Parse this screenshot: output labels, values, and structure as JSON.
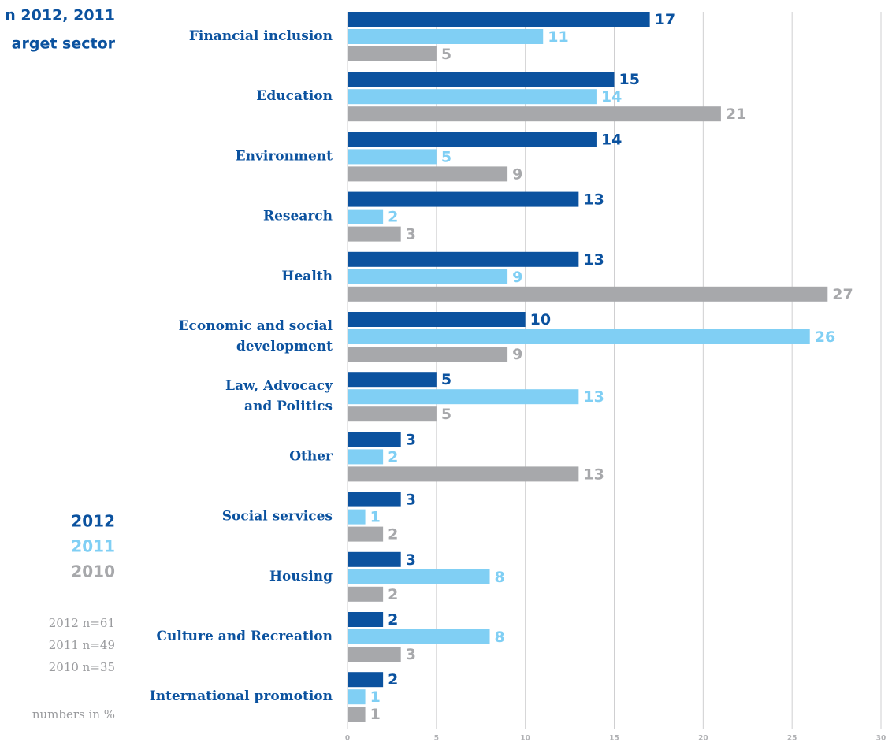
{
  "chart_data": {
    "type": "bar",
    "orientation": "horizontal",
    "title": [
      "n 2012, 2011",
      "arget sector"
    ],
    "categories": [
      [
        "Financial inclusion"
      ],
      [
        "Education"
      ],
      [
        "Environment"
      ],
      [
        "Research"
      ],
      [
        "Health"
      ],
      [
        "Economic and social",
        "development"
      ],
      [
        "Law, Advocacy",
        "and Politics"
      ],
      [
        "Other"
      ],
      [
        "Social services"
      ],
      [
        "Housing"
      ],
      [
        "Culture and Recreation"
      ],
      [
        "International promotion"
      ]
    ],
    "series": [
      {
        "name": "2012",
        "color": "#0b529f",
        "values": [
          17,
          15,
          14,
          13,
          13,
          10,
          5,
          3,
          3,
          3,
          2,
          2
        ]
      },
      {
        "name": "2011",
        "color": "#80cff4",
        "values": [
          11,
          14,
          5,
          2,
          9,
          26,
          13,
          2,
          1,
          8,
          8,
          1
        ]
      },
      {
        "name": "2010",
        "color": "#a7a8ab",
        "values": [
          5,
          21,
          9,
          3,
          27,
          9,
          5,
          13,
          2,
          2,
          3,
          1
        ]
      }
    ],
    "xlim": [
      0,
      30
    ],
    "xticks": [
      0,
      5,
      10,
      15,
      20,
      25,
      30
    ],
    "grid": true,
    "notes": [
      "2012 n=61",
      "2011 n=49",
      "2010 n=35",
      "numbers in %"
    ]
  }
}
